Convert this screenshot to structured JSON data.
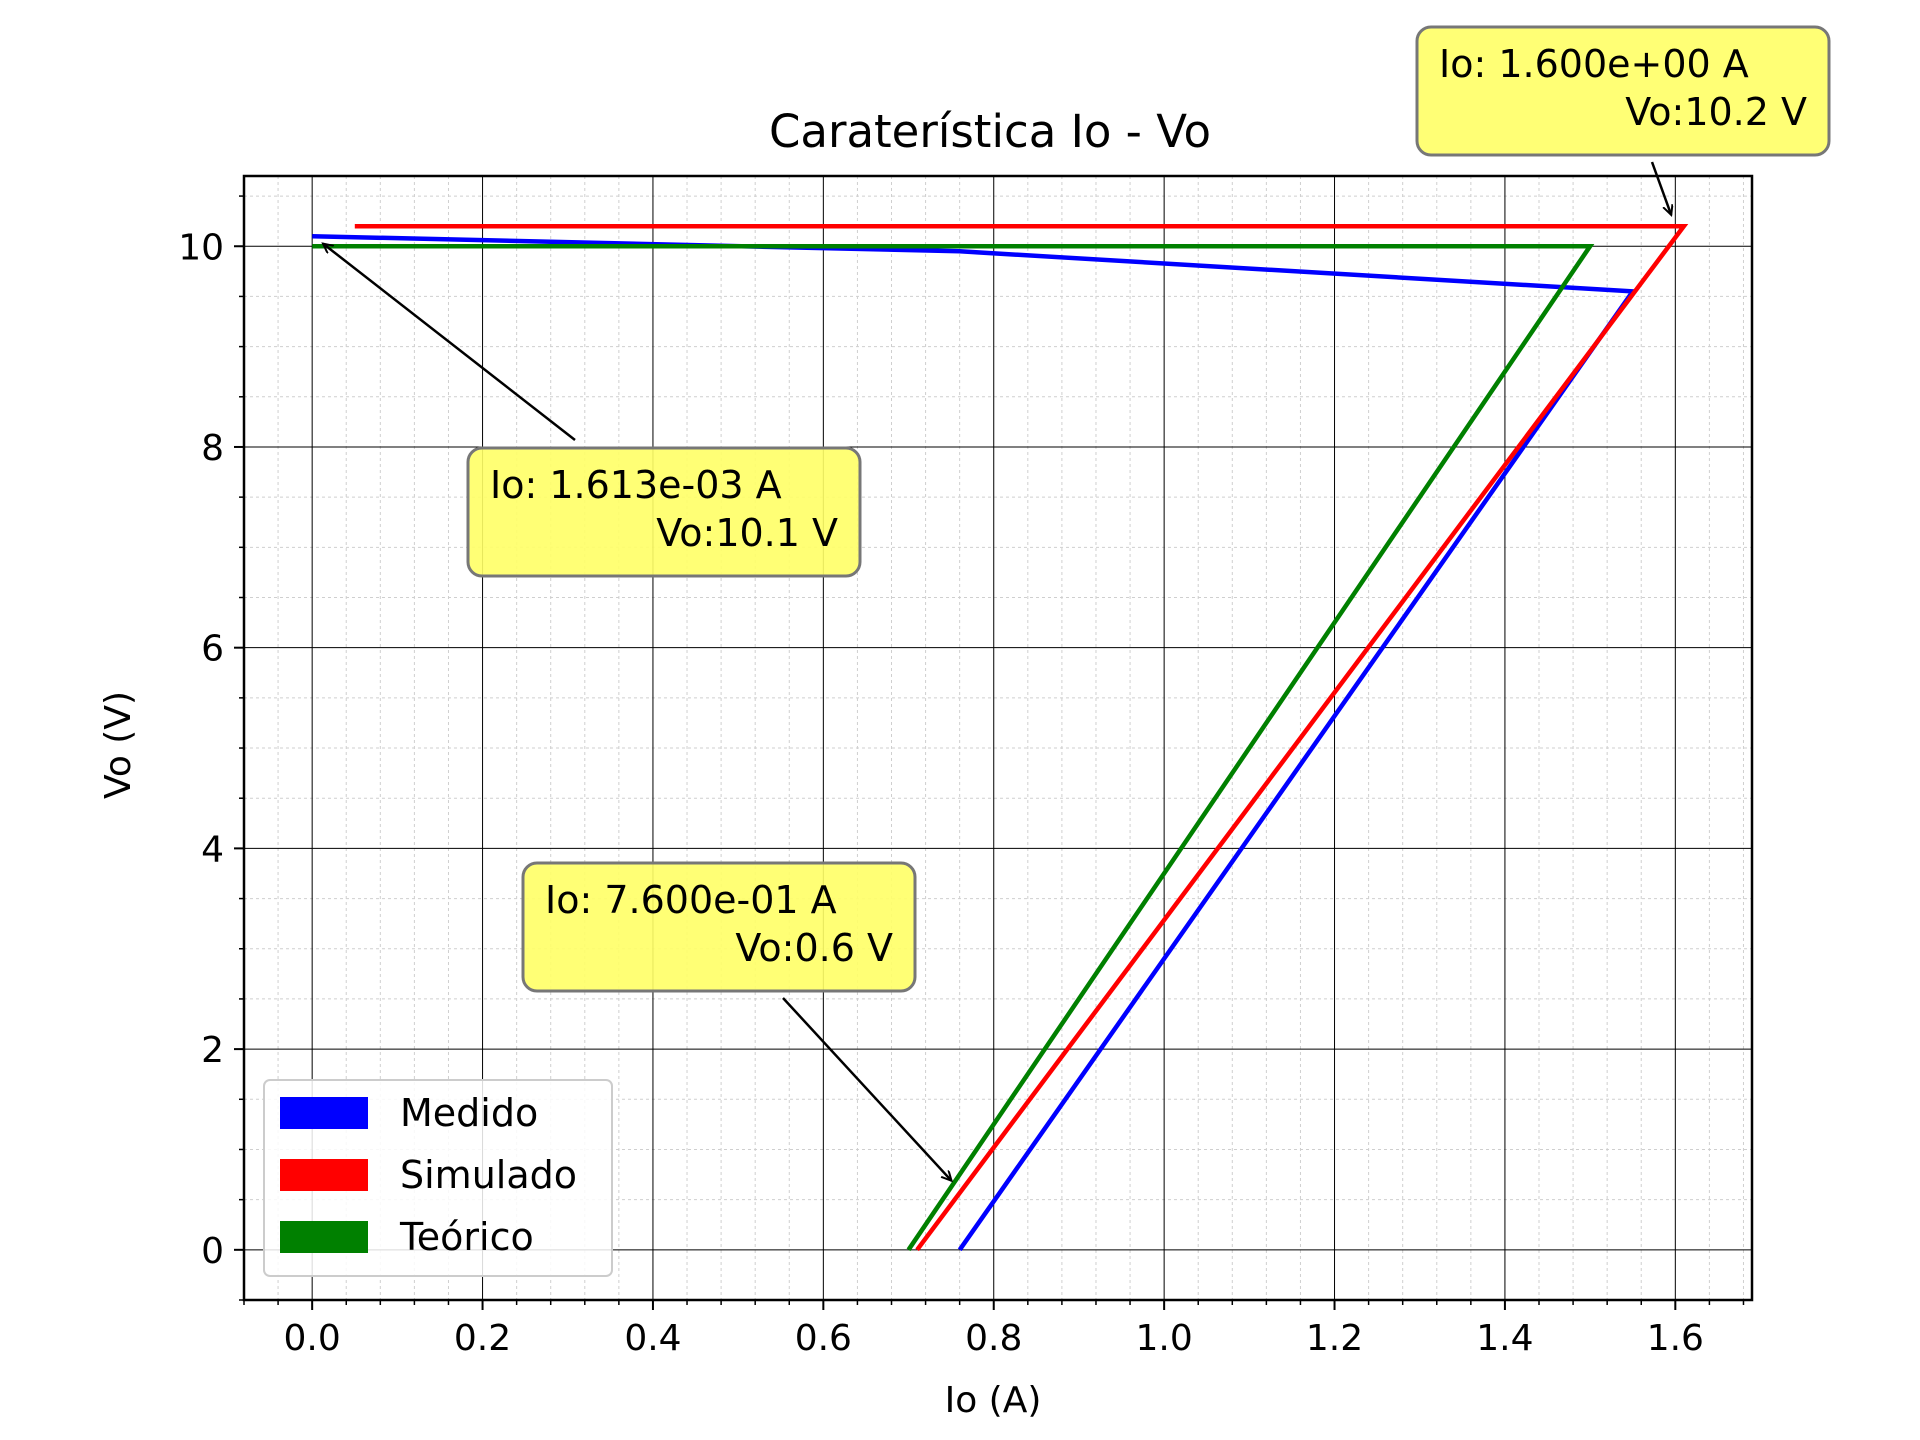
{
  "chart_data": {
    "type": "line",
    "title": "Caraterística Io - Vo",
    "xlabel": "Io (A)",
    "ylabel": "Vo (V)",
    "xlim": [
      -0.08,
      1.69
    ],
    "ylim": [
      -0.5,
      10.7
    ],
    "x_ticks": [
      "0.0",
      "0.2",
      "0.4",
      "0.6",
      "0.8",
      "1.0",
      "1.2",
      "1.4",
      "1.6"
    ],
    "x_tick_values": [
      0.0,
      0.2,
      0.4,
      0.6,
      0.8,
      1.0,
      1.2,
      1.4,
      1.6
    ],
    "y_ticks": [
      "0",
      "2",
      "4",
      "6",
      "8",
      "10"
    ],
    "y_tick_values": [
      0,
      2,
      4,
      6,
      8,
      10
    ],
    "grid": "major and minor",
    "legend_position": "lower-left",
    "series": [
      {
        "name": "Medido",
        "color": "#0000ff",
        "points": [
          [
            0.0,
            10.1
          ],
          [
            0.76,
            9.95
          ],
          [
            1.55,
            9.55
          ],
          [
            0.76,
            0.0
          ]
        ]
      },
      {
        "name": "Simulado",
        "color": "#ff0000",
        "points": [
          [
            0.05,
            10.2
          ],
          [
            1.61,
            10.2
          ],
          [
            0.71,
            0.0
          ]
        ]
      },
      {
        "name": "Teórico",
        "color": "#008000",
        "points": [
          [
            0.0,
            10.0
          ],
          [
            1.5,
            10.0
          ],
          [
            0.7,
            0.0
          ]
        ]
      }
    ],
    "annotations": [
      {
        "line1": "Io: 1.600e+00  A",
        "line2": "Vo:10.2 V",
        "target": [
          1.6,
          10.2
        ]
      },
      {
        "line1": "Io: 1.613e-03  A",
        "line2": "Vo:10.1 V",
        "target": [
          0.0016,
          10.1
        ]
      },
      {
        "line1": "Io: 7.600e-01  A",
        "line2": "Vo:0.6 V",
        "target": [
          0.76,
          0.6
        ]
      }
    ]
  }
}
